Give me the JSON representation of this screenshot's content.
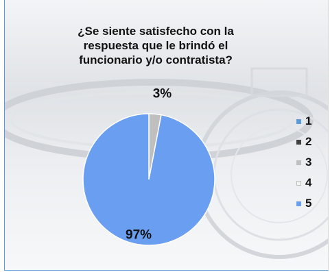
{
  "chart_data": {
    "type": "pie",
    "title": "¿Se siente satisfecho con la respuesta que le brindó el funcionario y/o contratista?",
    "categories": [
      "1",
      "2",
      "3",
      "4",
      "5"
    ],
    "values": [
      0,
      0,
      3,
      0,
      97
    ],
    "value_labels": [
      "",
      "",
      "3%",
      "",
      "97%"
    ],
    "colors": [
      "#5b9bd5",
      "#404040",
      "#bfbfbf",
      "#f2f2f2",
      "#6a9ef0"
    ],
    "legend_position": "right"
  }
}
